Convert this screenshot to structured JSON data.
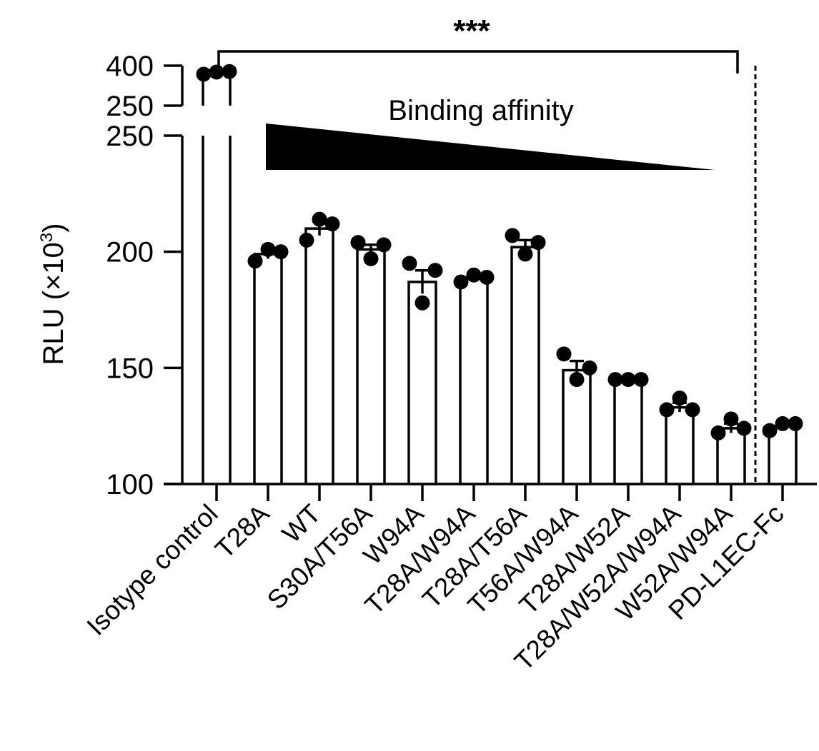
{
  "chart_data": {
    "type": "bar",
    "categories": [
      "Isotype control",
      "T28A",
      "WT",
      "S30A/T56A",
      "W94A",
      "T28A/W94A",
      "T28A/T56A",
      "T56A/W94A",
      "T28A/W52A",
      "T28A/W52A/W94A",
      "W52A/W94A",
      "PD-L1EC-Fc"
    ],
    "values": [
      375,
      199,
      210,
      201,
      187,
      189,
      202,
      149,
      145,
      133,
      124,
      125
    ],
    "errors": [
      6,
      2,
      3,
      2,
      5,
      1,
      3,
      4,
      0.5,
      2,
      2,
      1
    ],
    "points": [
      [
        368,
        376,
        378
      ],
      [
        196,
        201,
        200
      ],
      [
        205,
        214,
        212
      ],
      [
        204,
        197,
        203
      ],
      [
        195,
        178,
        192
      ],
      [
        187,
        190,
        189
      ],
      [
        207,
        199,
        204
      ],
      [
        156,
        145,
        150
      ],
      [
        145,
        145,
        145
      ],
      [
        132,
        137,
        132
      ],
      [
        122,
        128,
        124
      ],
      [
        123,
        126,
        126
      ]
    ],
    "ylabel": "RLU (×10",
    "ylabel_sup": "3",
    "ylabel_end": ")",
    "y_axis": {
      "broken": true,
      "lower_range": [
        100,
        250
      ],
      "upper_range": [
        250,
        400
      ],
      "lower_ticks": [
        100,
        150,
        200,
        250
      ],
      "upper_ticks": [
        250,
        400
      ]
    },
    "annotations": {
      "affinity_label": "Binding affinity",
      "significance": "***"
    },
    "grid": false,
    "legend": "none"
  },
  "colors": {
    "bar_fill": "#ffffff",
    "ink": "#000000"
  }
}
